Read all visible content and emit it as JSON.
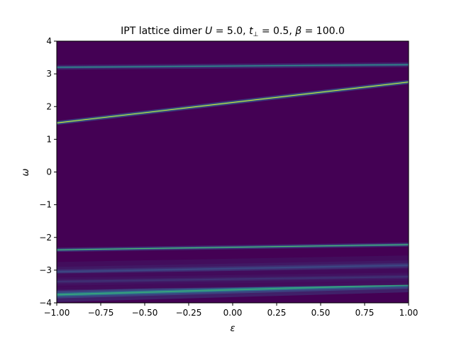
{
  "chart_data": {
    "type": "heatmap",
    "title": "IPT lattice dimer U = 5.0, t⊥ = 0.5, β = 100.0",
    "title_parts": {
      "prefix": "IPT lattice dimer ",
      "U_symbol": "U",
      "U_value": " = 5.0, ",
      "t_symbol": "t",
      "t_sub": "⊥",
      "t_value": " = 0.5, ",
      "beta_symbol": "β",
      "beta_value": " = 100.0"
    },
    "xlabel": "ε",
    "ylabel": "ω",
    "xlim": [
      -1.0,
      1.0
    ],
    "ylim": [
      -4,
      4
    ],
    "x_ticks": [
      -1.0,
      -0.75,
      -0.5,
      -0.25,
      0.0,
      0.25,
      0.5,
      0.75,
      1.0
    ],
    "x_tick_labels": [
      "−1.00",
      "−0.75",
      "−0.50",
      "−0.25",
      "0.00",
      "0.25",
      "0.50",
      "0.75",
      "1.00"
    ],
    "y_ticks": [
      -4,
      -3,
      -2,
      -1,
      0,
      1,
      2,
      3,
      4
    ],
    "y_tick_labels": [
      "−4",
      "−3",
      "−2",
      "−1",
      "0",
      "1",
      "2",
      "3",
      "4"
    ],
    "colormap": "viridis",
    "background_color": "#440154",
    "bands": [
      {
        "x": [
          -1.0,
          1.0
        ],
        "omega": [
          1.5,
          2.75
        ],
        "width": 0.025,
        "intensity": 1.0
      },
      {
        "x": [
          -1.0,
          1.0
        ],
        "omega": [
          3.2,
          3.28
        ],
        "width": 0.03,
        "intensity": 0.55
      },
      {
        "x": [
          -1.0,
          1.0
        ],
        "omega": [
          -2.38,
          -2.22
        ],
        "width": 0.025,
        "intensity": 0.75
      },
      {
        "x": [
          -1.0,
          1.0
        ],
        "omega": [
          -3.75,
          -3.45
        ],
        "width": 0.09,
        "intensity": 0.6
      },
      {
        "x": [
          -1.0,
          1.0
        ],
        "omega": [
          -3.05,
          -2.85
        ],
        "width": 0.12,
        "intensity": 0.22
      },
      {
        "x": [
          -1.0,
          1.0
        ],
        "omega": [
          -3.35,
          -3.2
        ],
        "width": 0.1,
        "intensity": 0.15
      }
    ]
  }
}
